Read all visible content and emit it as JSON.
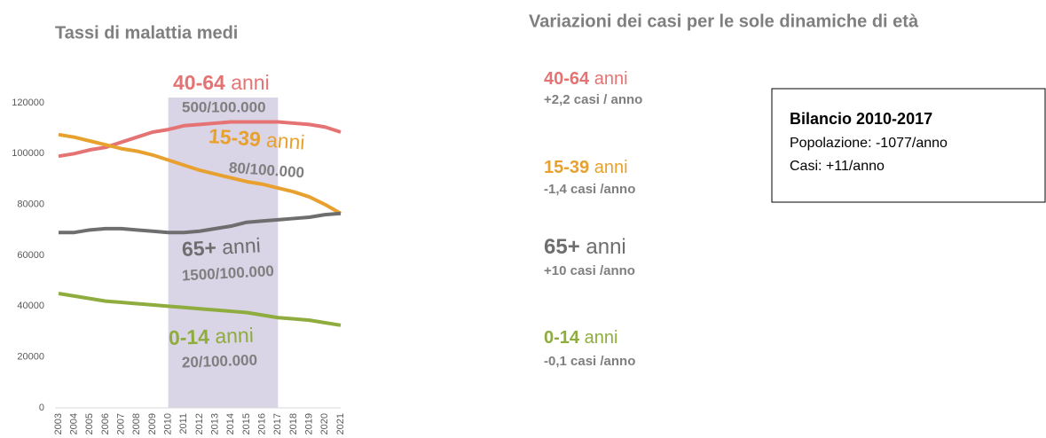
{
  "chart_data": {
    "type": "line",
    "title": "Tassi di malattia medi",
    "categories": [
      "2003",
      "2004",
      "2005",
      "2006",
      "2007",
      "2008",
      "2009",
      "2010",
      "2011",
      "2012",
      "2013",
      "2014",
      "2015",
      "2016",
      "2017",
      "2018",
      "2019",
      "2020",
      "2021"
    ],
    "series": [
      {
        "name": "40-64",
        "color": "#e57373",
        "values": [
          99000,
          100000,
          101500,
          102500,
          104500,
          106500,
          108500,
          109500,
          111000,
          111500,
          112000,
          112500,
          112500,
          112500,
          112500,
          112000,
          111500,
          110500,
          108500
        ]
      },
      {
        "name": "15-39",
        "color": "#e8a12f",
        "values": [
          107500,
          106500,
          105000,
          103500,
          102000,
          101000,
          99500,
          97500,
          95500,
          93500,
          92000,
          90500,
          89000,
          88000,
          86500,
          85000,
          83000,
          80000,
          76500
        ]
      },
      {
        "name": "65+",
        "color": "#6e6e6e",
        "values": [
          69000,
          69000,
          70000,
          70500,
          70500,
          70000,
          69500,
          69000,
          69000,
          69500,
          70500,
          71500,
          73000,
          73500,
          74000,
          74500,
          75000,
          76000,
          76500
        ]
      },
      {
        "name": "0-14",
        "color": "#8fac3e",
        "values": [
          45000,
          44000,
          43000,
          42000,
          41500,
          41000,
          40500,
          40000,
          39500,
          39000,
          38500,
          38000,
          37500,
          36500,
          35500,
          35000,
          34500,
          33500,
          32500
        ]
      }
    ],
    "ylim": [
      0,
      120000
    ],
    "yticks": [
      0,
      20000,
      40000,
      60000,
      80000,
      100000,
      120000
    ],
    "highlight_range": [
      "2010",
      "2017"
    ],
    "highlight_color": "#d9d4e6",
    "annotations": [
      {
        "label": "40-64",
        "unit": "anni",
        "rate": "500/100.000"
      },
      {
        "label": "15-39",
        "unit": "anni",
        "rate": "80/100.000"
      },
      {
        "label": "65+",
        "unit": "anni",
        "rate": "1500/100.000"
      },
      {
        "label": "0-14",
        "unit": "anni",
        "rate": "20/100.000"
      }
    ]
  },
  "variations": {
    "title": "Variazioni dei casi per le sole dinamiche di età",
    "items": [
      {
        "label": "40-64",
        "unit": "anni",
        "change": "+2,2 casi / anno"
      },
      {
        "label": "15-39",
        "unit": "anni",
        "change": "-1,4 casi /anno"
      },
      {
        "label": "65+",
        "unit": "anni",
        "change": "+10 casi /anno"
      },
      {
        "label": "0-14",
        "unit": "anni",
        "change": "-0,1 casi /anno"
      }
    ]
  },
  "summary_box": {
    "title": "Bilancio 2010-2017",
    "lines": [
      "Popolazione: -1077/anno",
      "Casi: +11/anno"
    ]
  }
}
